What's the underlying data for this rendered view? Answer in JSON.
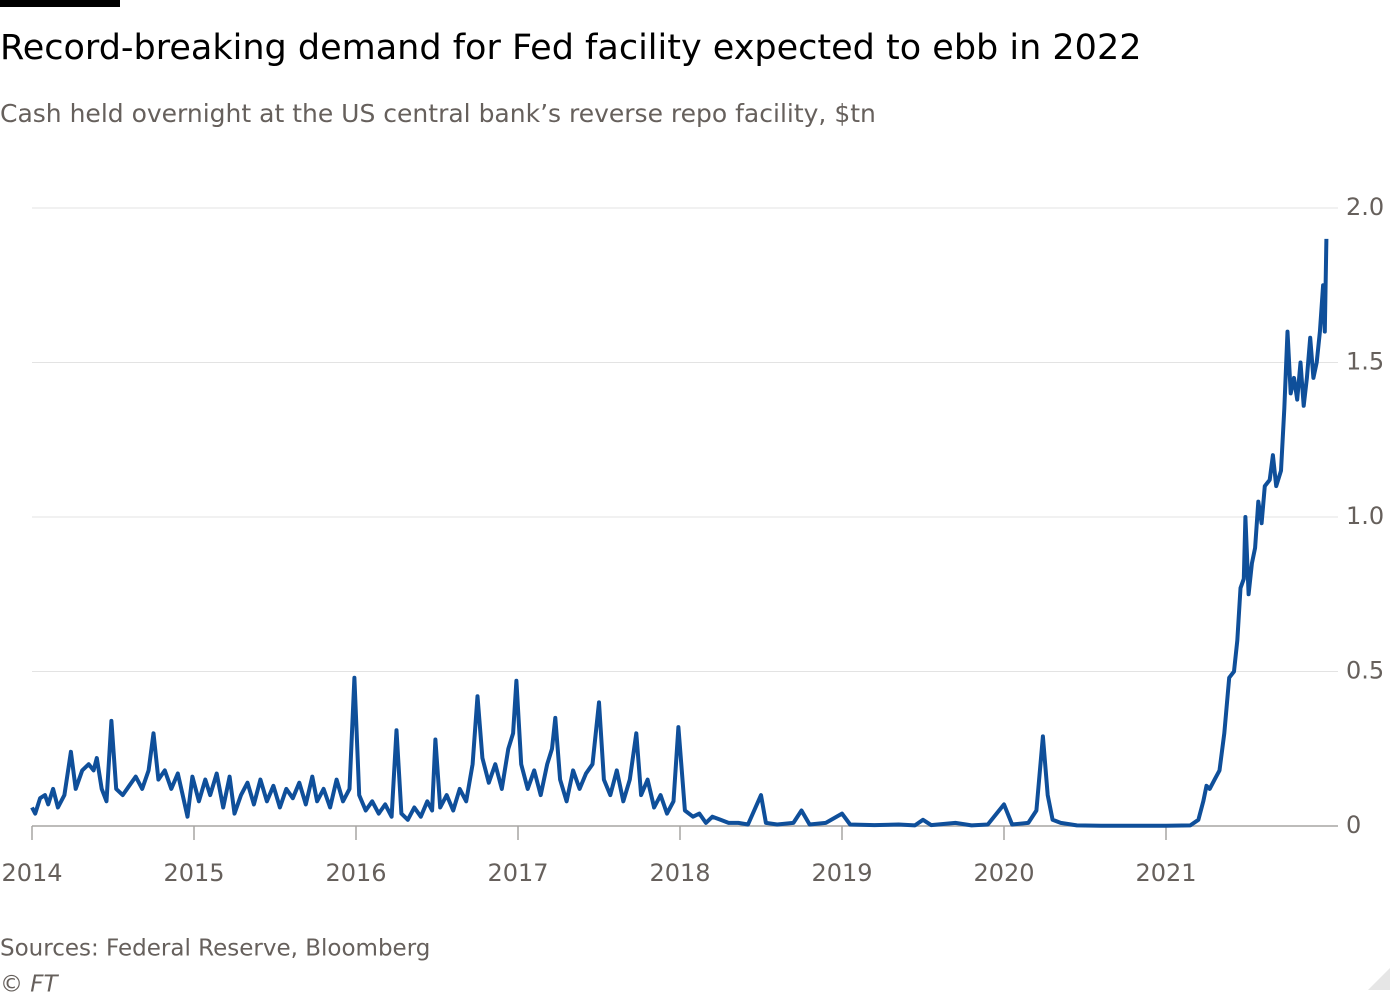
{
  "chart_data": {
    "type": "line",
    "title": "Record-breaking demand for Fed facility expected to ebb in 2022",
    "subtitle": "Cash held overnight at the US central bank’s reverse repo facility, $tn",
    "source": "Sources: Federal Reserve, Bloomberg",
    "credit": "© FT",
    "color": "#0f4f9a",
    "grid": true,
    "xlim": [
      2014,
      2022
    ],
    "xticks": [
      2014,
      2015,
      2016,
      2017,
      2018,
      2019,
      2020,
      2021
    ],
    "ylim": [
      0,
      2
    ],
    "yticks": [
      0,
      {
        "value": 0.5,
        "label": "0.5"
      },
      {
        "value": 1,
        "label": "1.0"
      },
      {
        "value": 1.5,
        "label": "1.5"
      },
      {
        "value": 2,
        "label": "2.0"
      }
    ],
    "x": [
      2014.0,
      2014.02,
      2014.05,
      2014.08,
      2014.1,
      2014.13,
      2014.16,
      2014.2,
      2014.24,
      2014.27,
      2014.31,
      2014.35,
      2014.38,
      2014.4,
      2014.43,
      2014.46,
      2014.49,
      2014.52,
      2014.56,
      2014.6,
      2014.64,
      2014.68,
      2014.72,
      2014.75,
      2014.78,
      2014.82,
      2014.86,
      2014.9,
      2014.93,
      2014.96,
      2014.99,
      2015.03,
      2015.07,
      2015.1,
      2015.14,
      2015.18,
      2015.22,
      2015.25,
      2015.29,
      2015.33,
      2015.37,
      2015.41,
      2015.45,
      2015.49,
      2015.53,
      2015.57,
      2015.61,
      2015.65,
      2015.69,
      2015.73,
      2015.76,
      2015.8,
      2015.84,
      2015.88,
      2015.92,
      2015.96,
      2015.99,
      2016.02,
      2016.06,
      2016.1,
      2016.14,
      2016.18,
      2016.22,
      2016.25,
      2016.28,
      2016.32,
      2016.36,
      2016.4,
      2016.44,
      2016.47,
      2016.49,
      2016.52,
      2016.56,
      2016.6,
      2016.64,
      2016.68,
      2016.72,
      2016.75,
      2016.78,
      2016.82,
      2016.86,
      2016.9,
      2016.94,
      2016.97,
      2016.99,
      2017.02,
      2017.06,
      2017.1,
      2017.14,
      2017.18,
      2017.21,
      2017.23,
      2017.26,
      2017.3,
      2017.34,
      2017.38,
      2017.42,
      2017.46,
      2017.5,
      2017.53,
      2017.57,
      2017.61,
      2017.65,
      2017.69,
      2017.73,
      2017.76,
      2017.8,
      2017.84,
      2017.88,
      2017.92,
      2017.96,
      2017.99,
      2018.03,
      2018.08,
      2018.12,
      2018.16,
      2018.2,
      2018.25,
      2018.3,
      2018.36,
      2018.42,
      2018.5,
      2018.53,
      2018.6,
      2018.7,
      2018.75,
      2018.8,
      2018.9,
      2019.0,
      2019.05,
      2019.2,
      2019.35,
      2019.45,
      2019.5,
      2019.55,
      2019.7,
      2019.8,
      2019.9,
      2020.0,
      2020.05,
      2020.15,
      2020.2,
      2020.24,
      2020.27,
      2020.3,
      2020.35,
      2020.45,
      2020.6,
      2020.8,
      2021.0,
      2021.15,
      2021.2,
      2021.23,
      2021.25,
      2021.27,
      2021.3,
      2021.33,
      2021.36,
      2021.39,
      2021.42,
      2021.44,
      2021.46,
      2021.48,
      2021.49,
      2021.51,
      2021.53,
      2021.55,
      2021.57,
      2021.59,
      2021.61,
      2021.64,
      2021.66,
      2021.68,
      2021.71,
      2021.73,
      2021.75,
      2021.77,
      2021.79,
      2021.81,
      2021.83,
      2021.85,
      2021.87,
      2021.89,
      2021.91,
      2021.93,
      2021.95,
      2021.97,
      2021.98,
      2021.99
    ],
    "values": [
      0.06,
      0.04,
      0.09,
      0.1,
      0.07,
      0.12,
      0.06,
      0.1,
      0.24,
      0.12,
      0.18,
      0.2,
      0.18,
      0.22,
      0.12,
      0.08,
      0.34,
      0.12,
      0.1,
      0.13,
      0.16,
      0.12,
      0.18,
      0.3,
      0.15,
      0.18,
      0.12,
      0.17,
      0.1,
      0.03,
      0.16,
      0.08,
      0.15,
      0.1,
      0.17,
      0.06,
      0.16,
      0.04,
      0.1,
      0.14,
      0.07,
      0.15,
      0.08,
      0.13,
      0.06,
      0.12,
      0.09,
      0.14,
      0.07,
      0.16,
      0.08,
      0.12,
      0.06,
      0.15,
      0.08,
      0.12,
      0.48,
      0.1,
      0.05,
      0.08,
      0.04,
      0.07,
      0.03,
      0.31,
      0.04,
      0.02,
      0.06,
      0.03,
      0.08,
      0.05,
      0.28,
      0.06,
      0.1,
      0.05,
      0.12,
      0.08,
      0.2,
      0.42,
      0.22,
      0.14,
      0.2,
      0.12,
      0.25,
      0.3,
      0.47,
      0.2,
      0.12,
      0.18,
      0.1,
      0.2,
      0.25,
      0.35,
      0.15,
      0.08,
      0.18,
      0.12,
      0.17,
      0.2,
      0.4,
      0.15,
      0.1,
      0.18,
      0.08,
      0.15,
      0.3,
      0.1,
      0.15,
      0.06,
      0.1,
      0.04,
      0.08,
      0.32,
      0.05,
      0.03,
      0.04,
      0.01,
      0.03,
      0.02,
      0.01,
      0.01,
      0.005,
      0.1,
      0.01,
      0.005,
      0.01,
      0.05,
      0.005,
      0.01,
      0.04,
      0.005,
      0.003,
      0.005,
      0.002,
      0.02,
      0.003,
      0.01,
      0.002,
      0.005,
      0.07,
      0.005,
      0.01,
      0.05,
      0.29,
      0.1,
      0.02,
      0.01,
      0.002,
      0.001,
      0.001,
      0.001,
      0.002,
      0.02,
      0.08,
      0.13,
      0.12,
      0.15,
      0.18,
      0.3,
      0.48,
      0.5,
      0.6,
      0.77,
      0.8,
      1.0,
      0.75,
      0.85,
      0.9,
      1.05,
      0.98,
      1.1,
      1.12,
      1.2,
      1.1,
      1.15,
      1.35,
      1.6,
      1.4,
      1.45,
      1.38,
      1.5,
      1.36,
      1.45,
      1.58,
      1.45,
      1.5,
      1.6,
      1.75,
      1.6,
      1.9
    ]
  }
}
